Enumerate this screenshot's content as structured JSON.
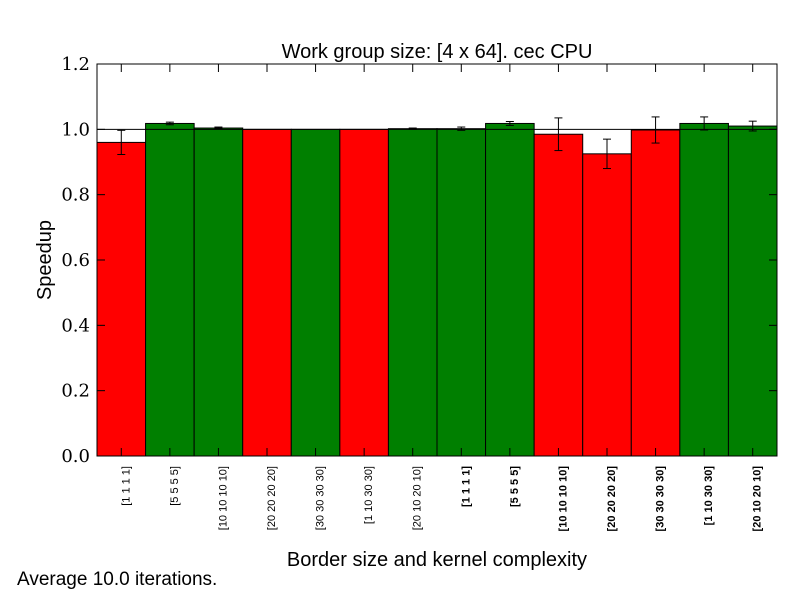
{
  "chart_data": {
    "type": "bar",
    "title": "Work group size: [4 x 64]. cec CPU",
    "xlabel": "Border size and kernel complexity",
    "ylabel": "Speedup",
    "ylim": [
      0.0,
      1.2
    ],
    "yticks": [
      "0.0",
      "0.2",
      "0.4",
      "0.6",
      "0.8",
      "1.0",
      "1.2"
    ],
    "reference_line": 1.0,
    "grid": false,
    "categories": [
      "[1 1 1 1]",
      "[5 5 5 5]",
      "[10 10 10 10]",
      "[20 20 20 20]",
      "[30 30 30 30]",
      "[1 10 30 30]",
      "[20 10 20 10]",
      "[1 1 1 1]",
      "[5 5 5 5]",
      "[10 10 10 10]",
      "[20 20 20 20]",
      "[30 30 30 30]",
      "[1 10 30 30]",
      "[20 10 20 10]"
    ],
    "bold_categories": [
      false,
      false,
      false,
      false,
      false,
      false,
      false,
      true,
      true,
      true,
      true,
      true,
      true,
      true
    ],
    "values": [
      0.96,
      1.018,
      1.004,
      1.0,
      1.0,
      1.0,
      1.002,
      1.002,
      1.018,
      0.985,
      0.925,
      0.998,
      1.018,
      1.01
    ],
    "errors": [
      0.037,
      0.004,
      0.003,
      0.0,
      0.0,
      0.0,
      0.002,
      0.005,
      0.006,
      0.05,
      0.045,
      0.04,
      0.02,
      0.015
    ],
    "bar_colors": [
      "#ff0000",
      "#007f00",
      "#007f00",
      "#ff0000",
      "#007f00",
      "#ff0000",
      "#007f00",
      "#007f00",
      "#007f00",
      "#ff0000",
      "#ff0000",
      "#ff0000",
      "#007f00",
      "#007f00"
    ]
  },
  "footnote": "Average 10.0 iterations."
}
